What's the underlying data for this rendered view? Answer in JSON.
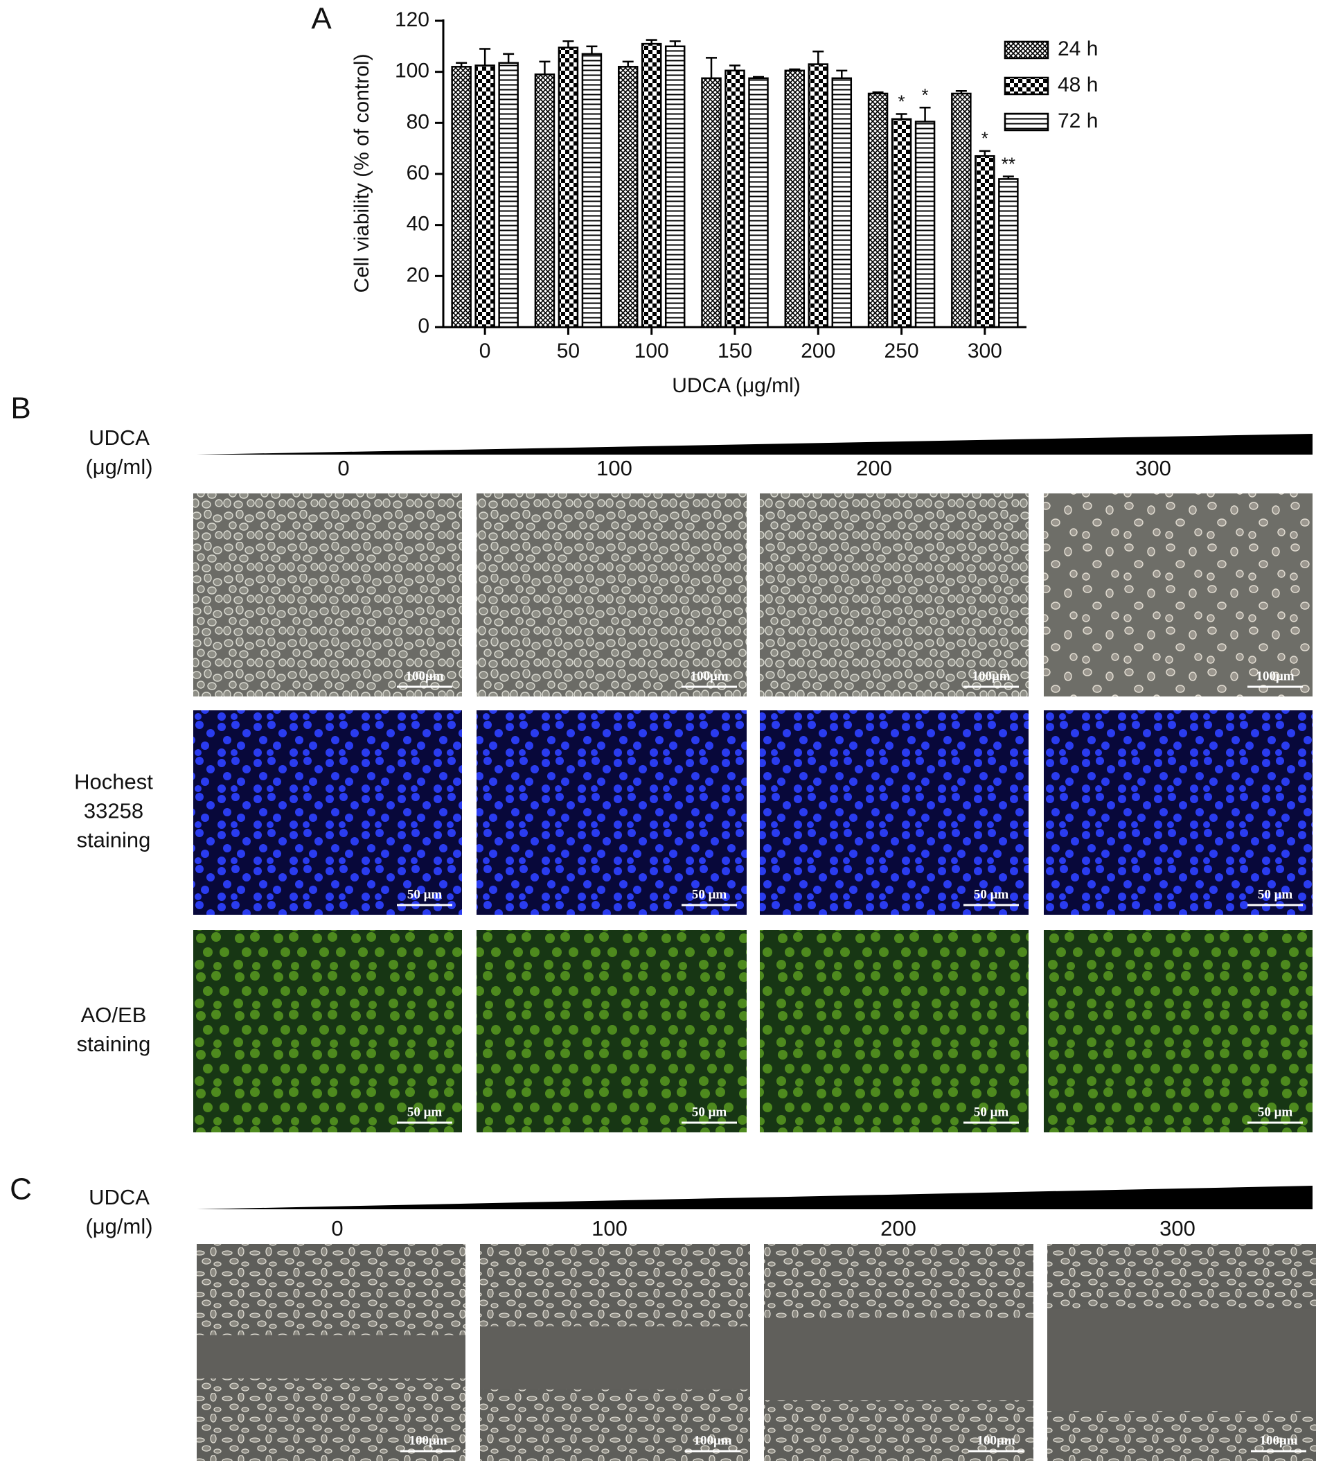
{
  "chart_data": {
    "type": "bar",
    "panel_label": "A",
    "y_label": "Cell viability (% of control)",
    "x_label": "UDCA (μg/ml)",
    "categories": [
      "0",
      "50",
      "100",
      "150",
      "200",
      "250",
      "300"
    ],
    "series": [
      {
        "name": "24 h",
        "color": "#000000",
        "pattern": "crosshatch",
        "values": [
          102,
          99,
          102,
          97.5,
          100.5,
          91.5,
          91.5
        ],
        "errors": [
          1.5,
          5,
          2,
          8,
          0.5,
          0.5,
          1
        ],
        "significance": [
          null,
          null,
          null,
          null,
          null,
          null,
          null
        ]
      },
      {
        "name": "48 h",
        "color": "#000000",
        "pattern": "checker",
        "values": [
          102.5,
          109.5,
          111,
          100.5,
          103,
          81.5,
          67
        ],
        "errors": [
          6.5,
          2.5,
          1.5,
          2,
          5,
          2,
          2
        ],
        "significance": [
          null,
          null,
          null,
          null,
          null,
          "*",
          "*"
        ]
      },
      {
        "name": "72 h",
        "color": "#000000",
        "pattern": "hlines",
        "values": [
          103.5,
          107,
          110,
          97.5,
          97.5,
          80.5,
          58
        ],
        "errors": [
          3.5,
          3,
          2,
          0.5,
          3,
          5.5,
          1
        ],
        "significance": [
          null,
          null,
          null,
          null,
          null,
          "*",
          "**"
        ]
      }
    ],
    "ylim": [
      0,
      120
    ],
    "yticks": [
      0,
      20,
      40,
      60,
      80,
      100,
      120
    ],
    "grid": false,
    "legend": "upper right"
  },
  "panels": {
    "B": {
      "label": "B",
      "dose_title": [
        "UDCA",
        "(μg/ml)"
      ],
      "doses": [
        "0",
        "100",
        "200",
        "300"
      ],
      "rows": [
        {
          "kind": "phase",
          "caption": [],
          "scale_bars": [
            "100μm",
            "100μm",
            "100μm",
            "100μm"
          ]
        },
        {
          "kind": "hoechst",
          "caption": [
            "Hochest",
            "33258",
            "staining"
          ],
          "scale_bars": [
            "50 μm",
            "50 μm",
            "50 μm",
            "50 μm"
          ]
        },
        {
          "kind": "aoeb",
          "caption": [
            "AO/EB",
            "staining"
          ],
          "scale_bars": [
            "50 μm",
            "50 μm",
            "50 μm",
            "50 μm"
          ]
        }
      ]
    },
    "C": {
      "label": "C",
      "dose_title": [
        "UDCA",
        "(μg/ml)"
      ],
      "doses": [
        "0",
        "100",
        "200",
        "300"
      ],
      "rows": [
        {
          "kind": "wound",
          "caption": [],
          "scale_bars": [
            "100μm",
            "100μm",
            "100μm",
            "100μm"
          ]
        }
      ]
    }
  }
}
